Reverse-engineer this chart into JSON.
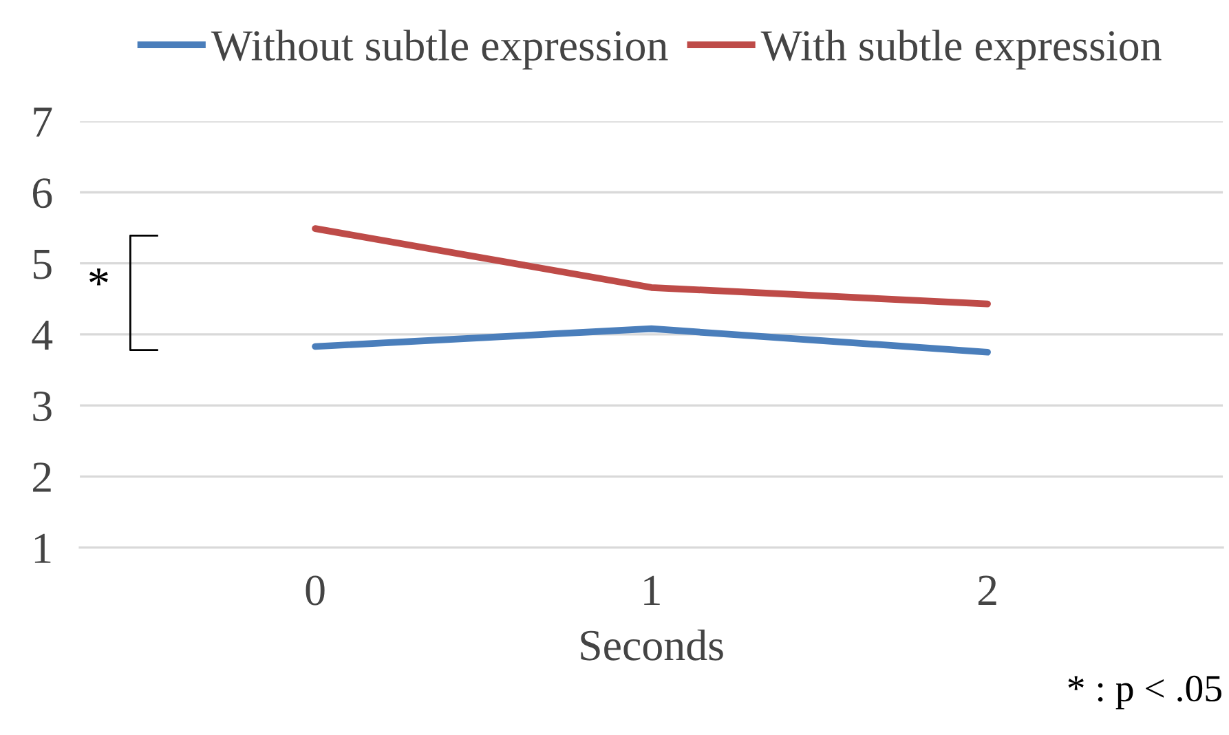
{
  "chart_data": {
    "type": "line",
    "xlabel": "Seconds",
    "categories": [
      "0",
      "1",
      "2"
    ],
    "series": [
      {
        "name": "Without subtle expression",
        "color": "#4a7ebb",
        "values": [
          3.83,
          4.08,
          3.75
        ]
      },
      {
        "name": "With subtle expression",
        "color": "#be4b48",
        "values": [
          5.49,
          4.66,
          4.43
        ]
      }
    ],
    "ylim": [
      1,
      7
    ],
    "yticks": [
      1,
      2,
      3,
      4,
      5,
      6,
      7
    ],
    "grid": "y",
    "legend": "top",
    "marker": "none",
    "line_style": "solid",
    "annotations": [
      "*",
      "* : p < .05"
    ]
  }
}
